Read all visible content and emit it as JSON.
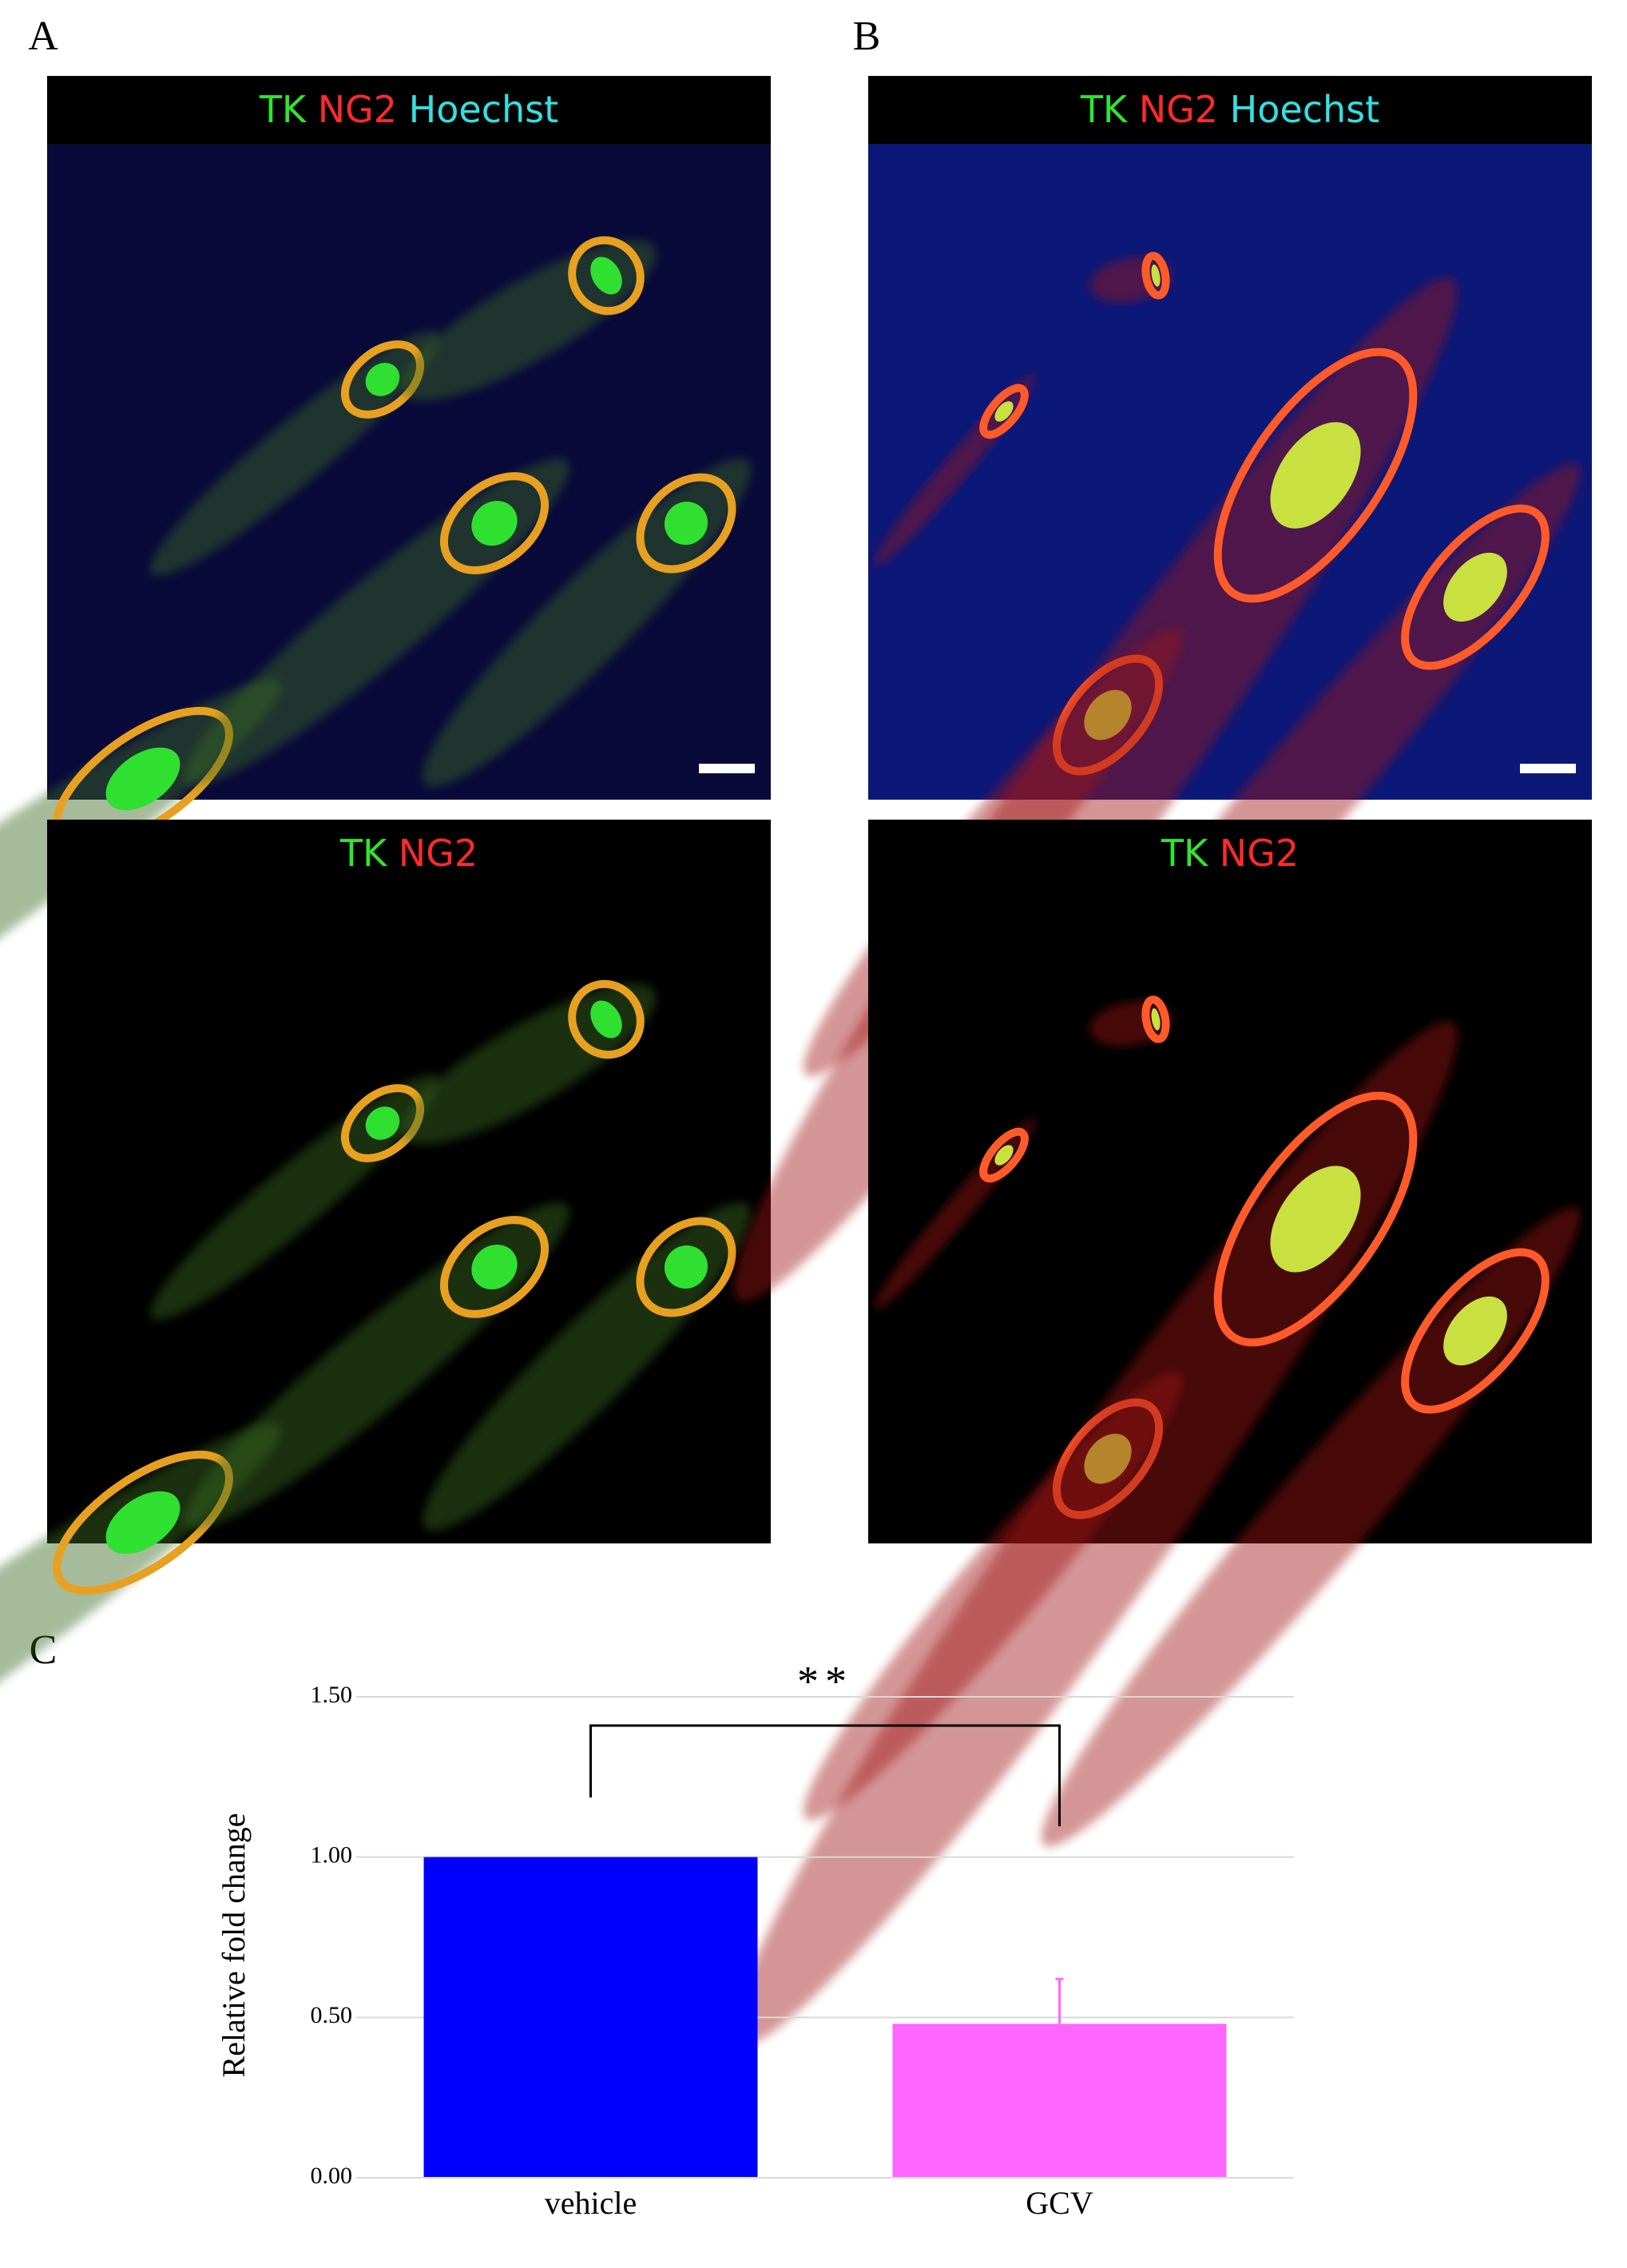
{
  "panels": [
    {
      "label": "A",
      "images": [
        {
          "stains": [
            "TK",
            "NG2",
            "Hoechst"
          ]
        },
        {
          "stains": [
            "TK",
            "NG2"
          ]
        }
      ]
    },
    {
      "label": "B",
      "images": [
        {
          "stains": [
            "TK",
            "NG2",
            "Hoechst"
          ]
        },
        {
          "stains": [
            "TK",
            "NG2"
          ]
        }
      ]
    },
    {
      "label": "C"
    }
  ],
  "stain_colors": {
    "TK": "#2ee62e",
    "NG2": "#ff2a2a",
    "Hoechst": "#33e0e0"
  },
  "chart_data": {
    "type": "bar",
    "y_label": "Relative fold change",
    "categories": [
      "vehicle",
      "GCV"
    ],
    "values": [
      1.0,
      0.48
    ],
    "errors": [
      null,
      0.14
    ],
    "colors": [
      "#0000ff",
      "#ff66ff"
    ],
    "significance": "**",
    "ylim": [
      0,
      1.5
    ],
    "yticks": [
      {
        "value": 0,
        "label": "0.00"
      },
      {
        "value": 0.5,
        "label": "0.50"
      },
      {
        "value": 1,
        "label": "1.00"
      },
      {
        "value": 1.5,
        "label": "1.50"
      }
    ],
    "grid": true
  }
}
